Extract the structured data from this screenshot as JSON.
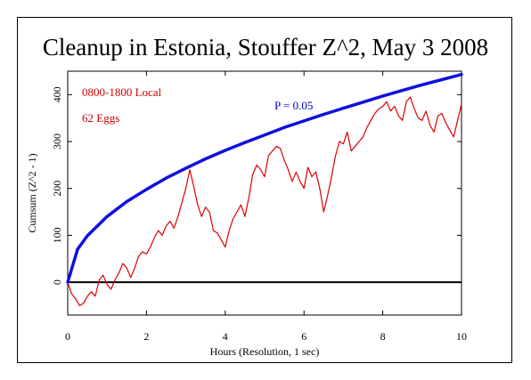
{
  "chart_data": {
    "type": "line",
    "title": "Cleanup in Estonia, Stouffer Z^2, May 3 2008",
    "xlabel": "Hours (Resolution, 1 sec)",
    "ylabel": "Cumsum (Z^2 - 1)",
    "xlim": [
      0,
      10
    ],
    "ylim": [
      -70,
      450
    ],
    "x_ticks": [
      0,
      2,
      4,
      6,
      8,
      10
    ],
    "y_ticks": [
      0,
      100,
      200,
      300,
      400
    ],
    "grid": false,
    "annotations": [
      "0800-1800 Local",
      "62 Eggs",
      "P = 0.05"
    ],
    "series": [
      {
        "name": "P = 0.05",
        "color": "#1010dd",
        "x": [
          0,
          0.25,
          0.5,
          1,
          1.5,
          2,
          2.5,
          3,
          3.5,
          4,
          4.5,
          5,
          5.5,
          6,
          6.5,
          7,
          7.5,
          8,
          8.5,
          9,
          9.5,
          10
        ],
        "y": [
          0,
          70,
          99,
          140,
          172,
          198,
          222,
          243,
          263,
          281,
          298,
          314,
          330,
          344,
          358,
          371,
          384,
          397,
          409,
          421,
          432,
          443
        ]
      },
      {
        "color": "#dd0000",
        "x": [
          0,
          0.1,
          0.2,
          0.3,
          0.4,
          0.5,
          0.6,
          0.7,
          0.8,
          0.9,
          1.0,
          1.1,
          1.2,
          1.3,
          1.4,
          1.5,
          1.6,
          1.7,
          1.8,
          1.9,
          2.0,
          2.1,
          2.2,
          2.3,
          2.4,
          2.5,
          2.6,
          2.7,
          2.8,
          2.9,
          3.0,
          3.1,
          3.2,
          3.3,
          3.4,
          3.5,
          3.6,
          3.7,
          3.8,
          3.9,
          4.0,
          4.1,
          4.2,
          4.3,
          4.4,
          4.5,
          4.6,
          4.7,
          4.8,
          4.9,
          5.0,
          5.1,
          5.2,
          5.3,
          5.4,
          5.5,
          5.6,
          5.7,
          5.8,
          5.9,
          6.0,
          6.1,
          6.2,
          6.3,
          6.4,
          6.5,
          6.6,
          6.7,
          6.8,
          6.9,
          7.0,
          7.1,
          7.2,
          7.3,
          7.4,
          7.5,
          7.6,
          7.7,
          7.8,
          7.9,
          8.0,
          8.1,
          8.2,
          8.3,
          8.4,
          8.5,
          8.6,
          8.7,
          8.8,
          8.9,
          9.0,
          9.1,
          9.2,
          9.3,
          9.4,
          9.5,
          9.6,
          9.7,
          9.8,
          9.9,
          10.0
        ],
        "y": [
          0,
          -25,
          -35,
          -50,
          -45,
          -30,
          -20,
          -30,
          5,
          15,
          -5,
          -15,
          5,
          20,
          40,
          30,
          10,
          30,
          55,
          65,
          60,
          75,
          95,
          110,
          100,
          120,
          130,
          115,
          140,
          170,
          200,
          240,
          205,
          165,
          140,
          160,
          150,
          110,
          105,
          90,
          75,
          110,
          135,
          150,
          165,
          140,
          180,
          230,
          250,
          240,
          225,
          270,
          280,
          290,
          285,
          260,
          240,
          215,
          235,
          215,
          200,
          245,
          225,
          235,
          200,
          150,
          185,
          225,
          270,
          300,
          295,
          320,
          280,
          290,
          300,
          310,
          330,
          345,
          360,
          370,
          375,
          385,
          365,
          375,
          355,
          345,
          385,
          395,
          370,
          350,
          345,
          365,
          335,
          320,
          355,
          360,
          340,
          325,
          310,
          345,
          380
        ]
      }
    ]
  }
}
